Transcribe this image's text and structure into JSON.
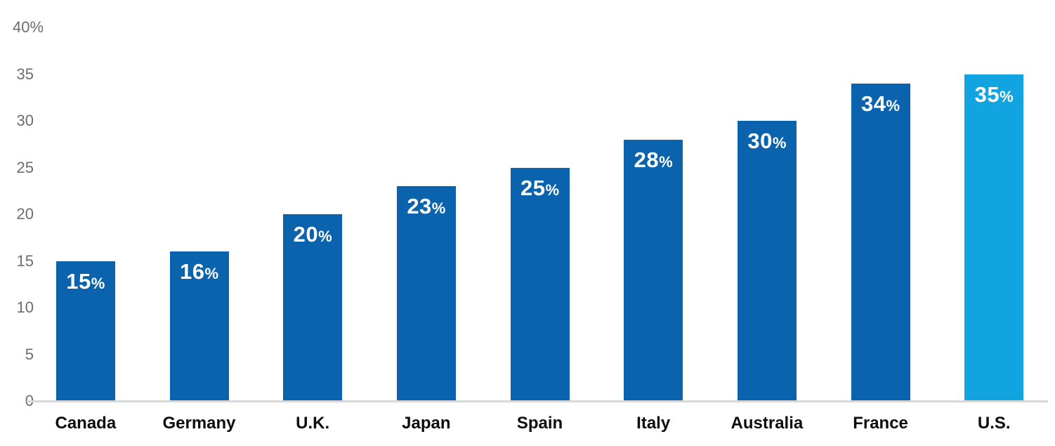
{
  "chart_data": {
    "type": "bar",
    "title": "",
    "xlabel": "",
    "ylabel": "",
    "categories": [
      "Canada",
      "Germany",
      "U.K.",
      "Japan",
      "Spain",
      "Italy",
      "Australia",
      "France",
      "U.S."
    ],
    "values": [
      15,
      16,
      20,
      23,
      25,
      28,
      30,
      34,
      35
    ],
    "bar_labels": [
      "15%",
      "16%",
      "20%",
      "23%",
      "25%",
      "28%",
      "30%",
      "34%",
      "35%"
    ],
    "highlight_index": 8,
    "highlight_category": "U.S.",
    "ylim": [
      0,
      40
    ],
    "yticks": [
      {
        "value": 40,
        "label": "40%"
      },
      {
        "value": 35,
        "label": "35"
      },
      {
        "value": 30,
        "label": "30"
      },
      {
        "value": 25,
        "label": "25"
      },
      {
        "value": 20,
        "label": "20"
      },
      {
        "value": 15,
        "label": "15"
      },
      {
        "value": 10,
        "label": "10"
      },
      {
        "value": 5,
        "label": "5"
      },
      {
        "value": 0,
        "label": "0"
      }
    ],
    "grid": false,
    "legend": "none",
    "colors": {
      "bar_default": "#0b63ae",
      "bar_highlight": "#12a4e0",
      "bar_value_text": "#ffffff",
      "y_tick_text": "#6d6d6d",
      "category_text": "#0d0d0d",
      "axis_line": "#d9d9d9",
      "background": "#ffffff"
    }
  }
}
